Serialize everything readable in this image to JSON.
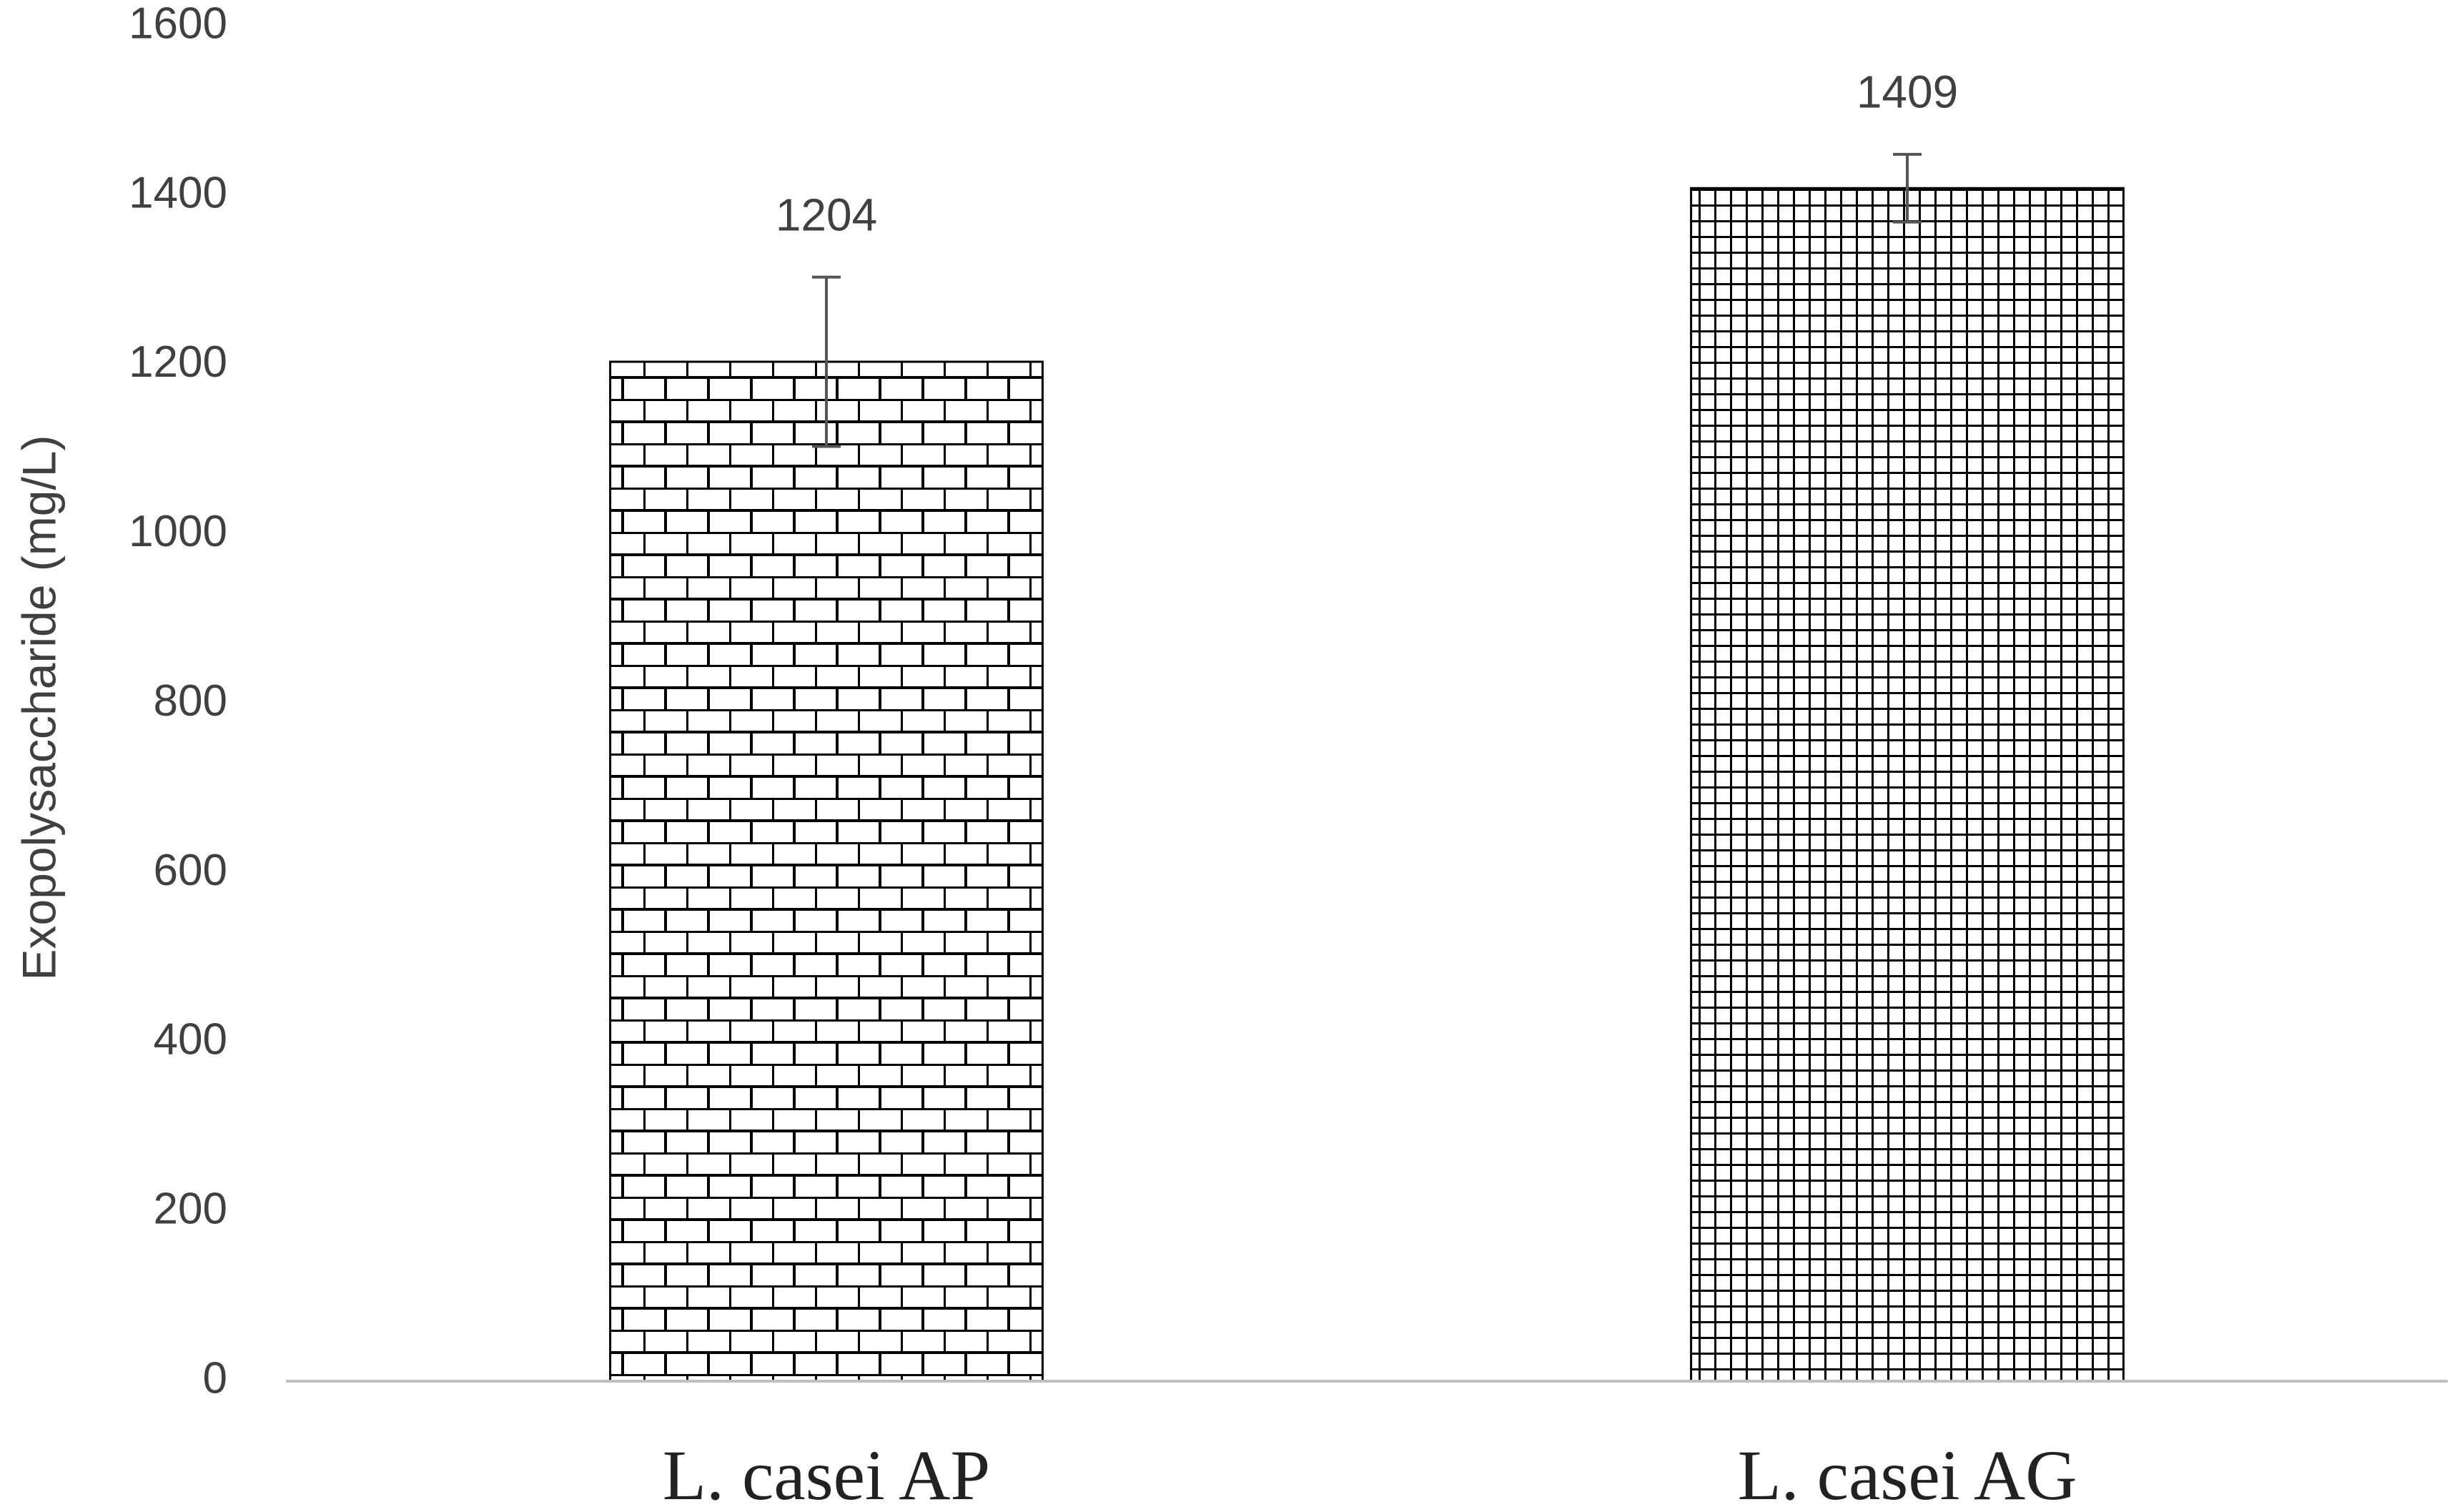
{
  "chart_data": {
    "type": "bar",
    "y_label": "Exopolysaccharide (mg/L)",
    "categories": [
      "L. casei AP",
      "L. casei AG"
    ],
    "values": [
      1204,
      1409
    ],
    "errors": [
      100,
      40
    ],
    "patterns": [
      "brick",
      "grid"
    ],
    "color": "#000000",
    "ylim": [
      0,
      1600
    ],
    "yticks": [
      0,
      200,
      400,
      600,
      800,
      1000,
      1200,
      1400,
      1600
    ]
  }
}
